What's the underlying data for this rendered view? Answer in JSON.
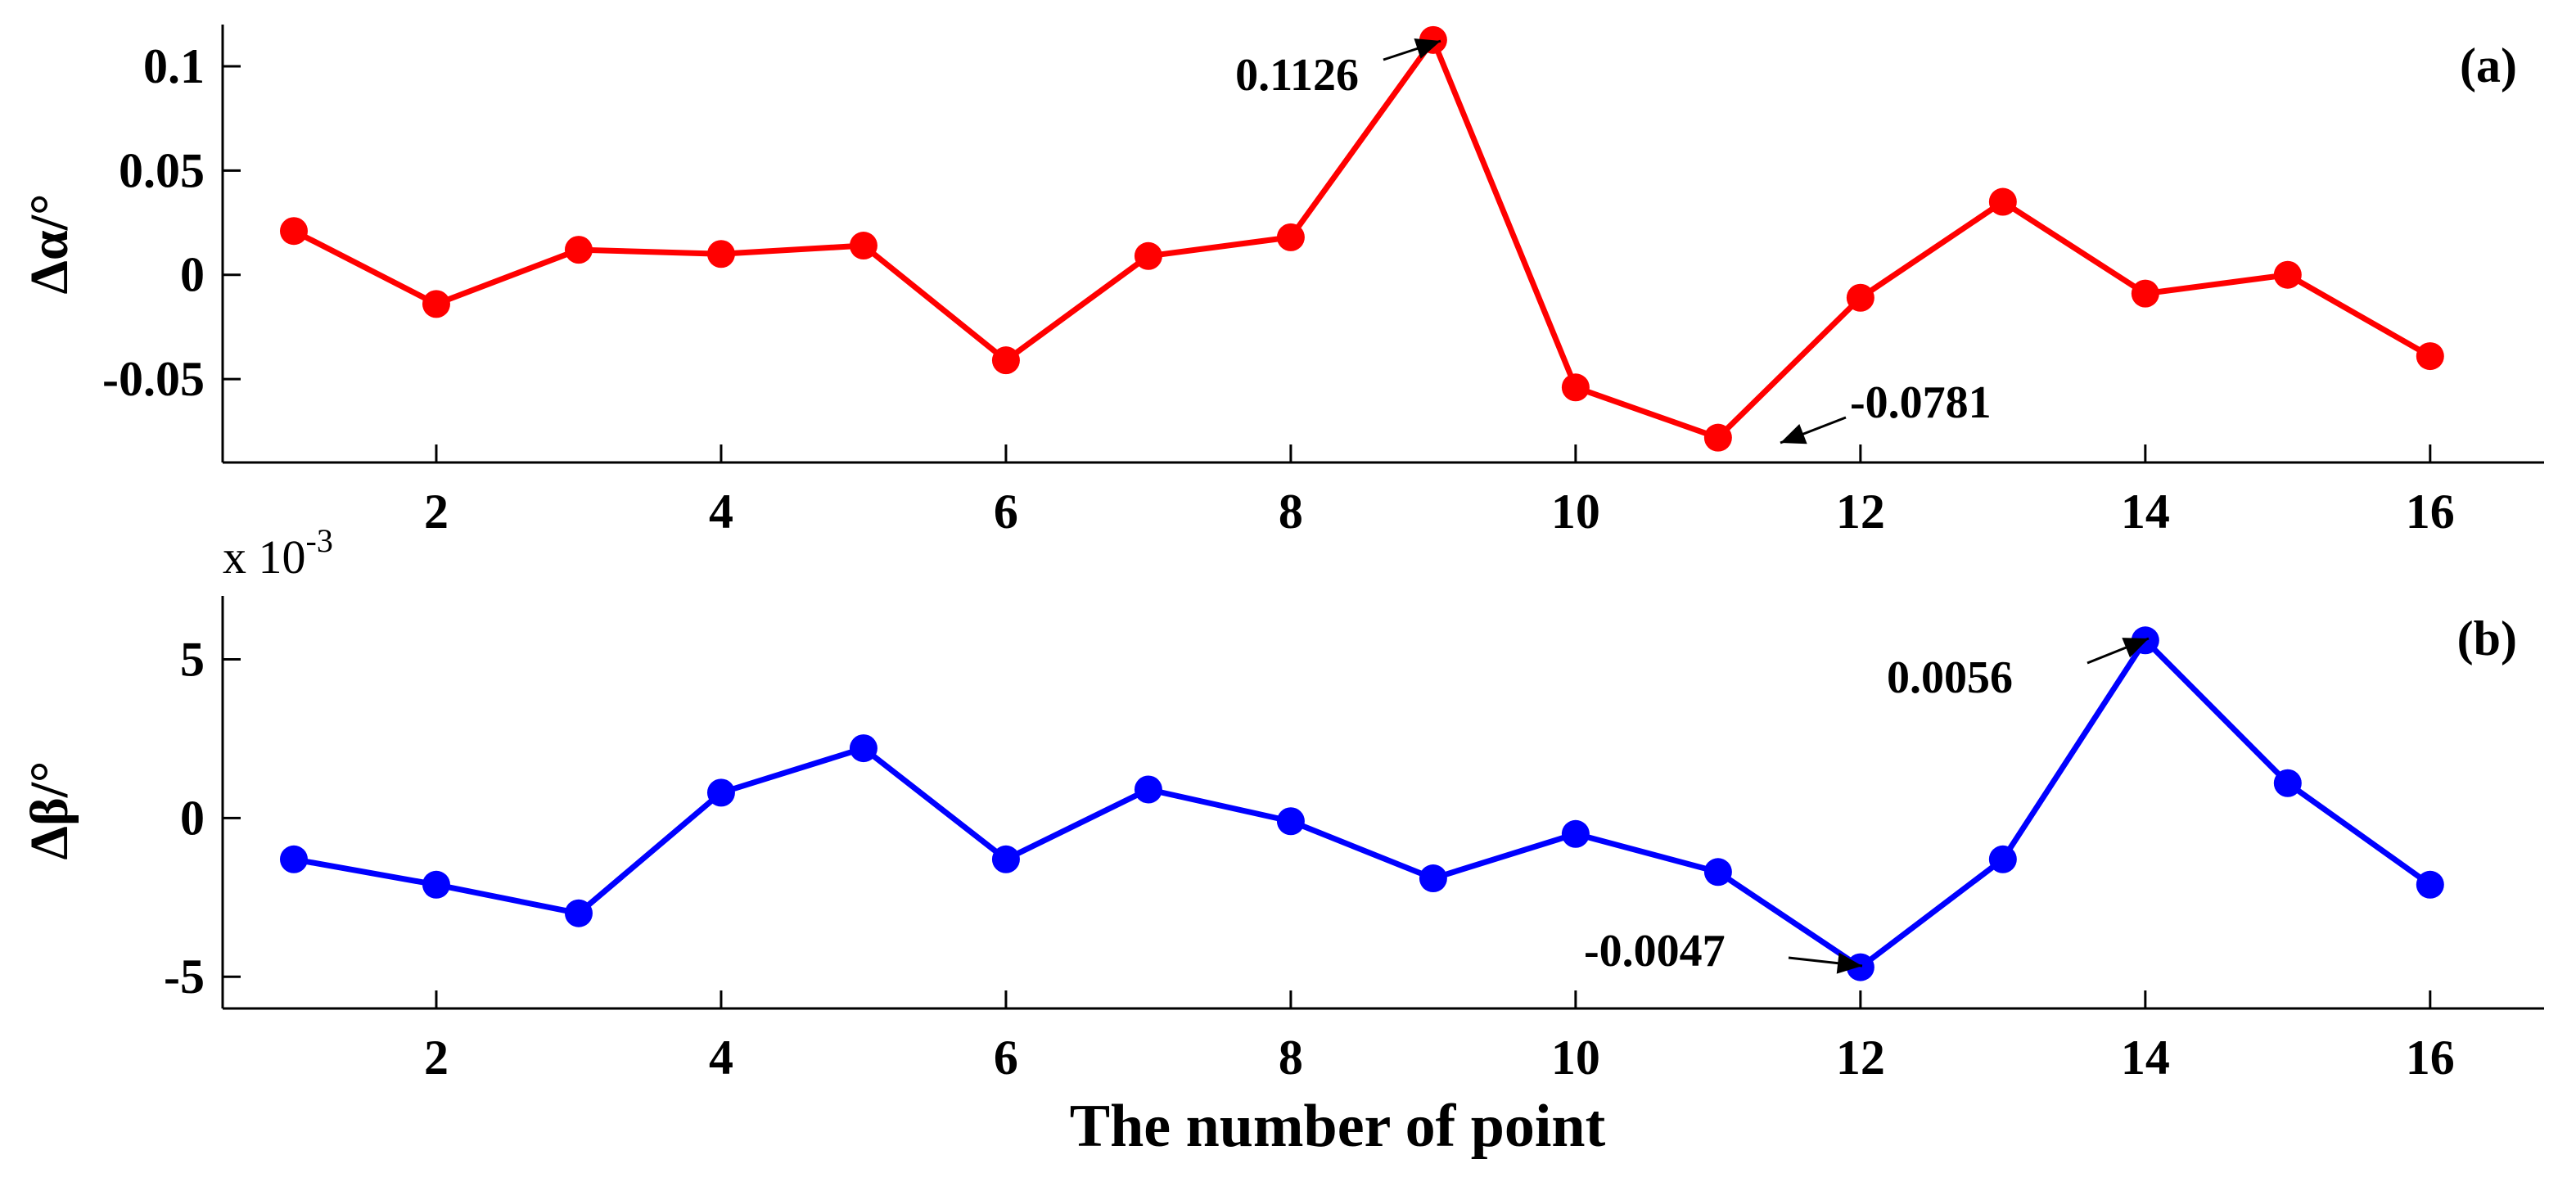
{
  "chart_data": [
    {
      "type": "line",
      "panel_label": "(a)",
      "ylabel": "Δα/°",
      "x": [
        1,
        2,
        3,
        4,
        5,
        6,
        7,
        8,
        9,
        10,
        11,
        12,
        13,
        14,
        15,
        16
      ],
      "y": [
        0.021,
        -0.014,
        0.012,
        0.01,
        0.014,
        -0.041,
        0.009,
        0.018,
        0.1126,
        -0.054,
        -0.0781,
        -0.011,
        0.035,
        -0.009,
        0.0,
        -0.039
      ],
      "xlim": [
        0.5,
        16.8
      ],
      "ylim": [
        -0.09,
        0.12
      ],
      "xticks": [
        2,
        4,
        6,
        8,
        10,
        12,
        14,
        16
      ],
      "xtick_labels": [
        "2",
        "4",
        "6",
        "8",
        "10",
        "12",
        "14",
        "16"
      ],
      "yticks": [
        0.1,
        0.05,
        0,
        -0.05
      ],
      "ytick_labels": [
        "0.1",
        "0.05",
        "0",
        "-0.05"
      ],
      "color": "#ff0000",
      "annotations": [
        {
          "text": "0.1126",
          "x": 9,
          "y": 0.1126
        },
        {
          "text": "-0.0781",
          "x": 11,
          "y": -0.0781
        }
      ]
    },
    {
      "type": "line",
      "panel_label": "(b)",
      "ylabel": "Δβ/°",
      "y_exponent_prefix": "x 10",
      "y_exponent_power": "-3",
      "x": [
        1,
        2,
        3,
        4,
        5,
        6,
        7,
        8,
        9,
        10,
        11,
        12,
        13,
        14,
        15,
        16
      ],
      "y": [
        -1.3,
        -2.1,
        -3.0,
        0.8,
        2.2,
        -1.3,
        0.9,
        -0.1,
        -1.9,
        -0.5,
        -1.7,
        -4.7,
        -1.3,
        5.6,
        1.1,
        -2.1
      ],
      "xlim": [
        0.5,
        16.8
      ],
      "ylim": [
        -6,
        7
      ],
      "xticks": [
        2,
        4,
        6,
        8,
        10,
        12,
        14,
        16
      ],
      "xtick_labels": [
        "2",
        "4",
        "6",
        "8",
        "10",
        "12",
        "14",
        "16"
      ],
      "yticks": [
        5,
        0,
        -5
      ],
      "ytick_labels": [
        "5",
        "0",
        "-5"
      ],
      "color": "#0000ff",
      "annotations": [
        {
          "text": "0.0056",
          "x": 14,
          "y": 5.6
        },
        {
          "text": "-0.0047",
          "x": 12,
          "y": -4.7
        }
      ]
    }
  ],
  "xlabel": "The number of point"
}
